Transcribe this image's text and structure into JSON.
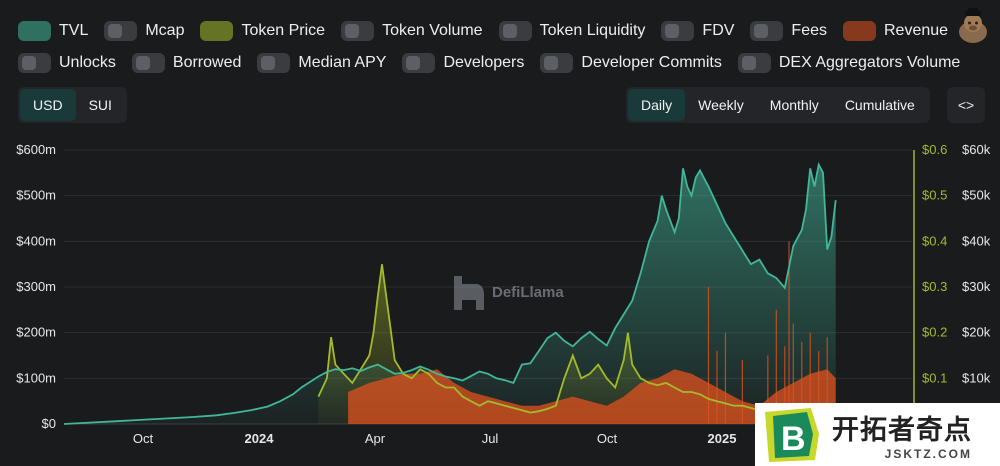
{
  "toggles": [
    {
      "label": "TVL",
      "on": true,
      "color": "#41b79a"
    },
    {
      "label": "Mcap",
      "on": false,
      "color": "#3a3c40"
    },
    {
      "label": "Token Price",
      "on": true,
      "color": "#a5ba2a"
    },
    {
      "label": "Token Volume",
      "on": false,
      "color": "#3a3c40"
    },
    {
      "label": "Token Liquidity",
      "on": false,
      "color": "#3a3c40"
    },
    {
      "label": "FDV",
      "on": false,
      "color": "#3a3c40"
    },
    {
      "label": "Fees",
      "on": false,
      "color": "#3a3c40"
    },
    {
      "label": "Revenue",
      "on": true,
      "color": "#e0521d"
    },
    {
      "label": "Unlocks",
      "on": false,
      "color": "#3a3c40"
    },
    {
      "label": "Borrowed",
      "on": false,
      "color": "#3a3c40"
    },
    {
      "label": "Median APY",
      "on": false,
      "color": "#3a3c40"
    },
    {
      "label": "Developers",
      "on": false,
      "color": "#3a3c40"
    },
    {
      "label": "Developer Commits",
      "on": false,
      "color": "#3a3c40"
    },
    {
      "label": "DEX Aggregators Volume",
      "on": false,
      "color": "#3a3c40"
    }
  ],
  "currency": {
    "options": [
      "USD",
      "SUI"
    ],
    "selected": "USD"
  },
  "period": {
    "options": [
      "Daily",
      "Weekly",
      "Monthly",
      "Cumulative"
    ],
    "selected": "Daily"
  },
  "embed_label": "<>",
  "watermark": "DefiLlama",
  "badge": {
    "title": "开拓者奇点",
    "sub": "JSKTZ.COM"
  },
  "chart_data": {
    "type": "area",
    "x_ticks": [
      "Oct",
      "2024",
      "Apr",
      "Jul",
      "Oct",
      "2025"
    ],
    "x_ticks_bold": [
      false,
      true,
      false,
      false,
      false,
      true
    ],
    "x_tick_pos": [
      0.143,
      0.259,
      0.375,
      0.49,
      0.607,
      0.722
    ],
    "axes": {
      "tvl": {
        "labels": [
          "$0",
          "$100m",
          "$200m",
          "$300m",
          "$400m",
          "$500m",
          "$600m"
        ],
        "ylim": [
          0,
          600
        ],
        "unit": "m"
      },
      "price": {
        "labels": [
          "$0.1",
          "$0.2",
          "$0.3",
          "$0.4",
          "$0.5",
          "$0.6"
        ],
        "ylim": [
          0,
          0.6
        ]
      },
      "revenue": {
        "labels": [
          "$10k",
          "$20k",
          "$30k",
          "$40k",
          "$50k",
          "$60k"
        ],
        "ylim": [
          0,
          60
        ]
      }
    },
    "series": [
      {
        "name": "TVL",
        "color": "#41b79a",
        "points": [
          [
            0,
            0
          ],
          [
            0.03,
            3
          ],
          [
            0.06,
            6
          ],
          [
            0.09,
            9
          ],
          [
            0.12,
            12
          ],
          [
            0.15,
            15
          ],
          [
            0.18,
            19
          ],
          [
            0.2,
            24
          ],
          [
            0.22,
            30
          ],
          [
            0.24,
            38
          ],
          [
            0.255,
            50
          ],
          [
            0.27,
            65
          ],
          [
            0.28,
            80
          ],
          [
            0.29,
            92
          ],
          [
            0.3,
            104
          ],
          [
            0.31,
            114
          ],
          [
            0.32,
            120
          ],
          [
            0.33,
            118
          ],
          [
            0.34,
            122
          ],
          [
            0.35,
            116
          ],
          [
            0.36,
            124
          ],
          [
            0.37,
            130
          ],
          [
            0.38,
            120
          ],
          [
            0.39,
            110
          ],
          [
            0.4,
            112
          ],
          [
            0.41,
            118
          ],
          [
            0.42,
            126
          ],
          [
            0.43,
            119
          ],
          [
            0.44,
            110
          ],
          [
            0.45,
            104
          ],
          [
            0.46,
            100
          ],
          [
            0.47,
            95
          ],
          [
            0.48,
            105
          ],
          [
            0.49,
            115
          ],
          [
            0.5,
            110
          ],
          [
            0.51,
            100
          ],
          [
            0.52,
            96
          ],
          [
            0.53,
            90
          ],
          [
            0.54,
            130
          ],
          [
            0.55,
            133
          ],
          [
            0.56,
            160
          ],
          [
            0.57,
            188
          ],
          [
            0.58,
            200
          ],
          [
            0.59,
            182
          ],
          [
            0.6,
            170
          ],
          [
            0.61,
            188
          ],
          [
            0.62,
            202
          ],
          [
            0.63,
            186
          ],
          [
            0.64,
            172
          ],
          [
            0.65,
            210
          ],
          [
            0.66,
            240
          ],
          [
            0.67,
            270
          ],
          [
            0.68,
            330
          ],
          [
            0.69,
            400
          ],
          [
            0.7,
            445
          ],
          [
            0.705,
            500
          ],
          [
            0.71,
            470
          ],
          [
            0.72,
            420
          ],
          [
            0.725,
            450
          ],
          [
            0.73,
            560
          ],
          [
            0.735,
            520
          ],
          [
            0.74,
            500
          ],
          [
            0.745,
            540
          ],
          [
            0.75,
            555
          ],
          [
            0.76,
            520
          ],
          [
            0.77,
            480
          ],
          [
            0.78,
            440
          ],
          [
            0.79,
            410
          ],
          [
            0.8,
            380
          ],
          [
            0.81,
            350
          ],
          [
            0.82,
            360
          ],
          [
            0.83,
            330
          ],
          [
            0.84,
            320
          ],
          [
            0.85,
            298
          ],
          [
            0.86,
            390
          ],
          [
            0.87,
            425
          ],
          [
            0.875,
            470
          ],
          [
            0.88,
            560
          ],
          [
            0.885,
            520
          ],
          [
            0.89,
            568
          ],
          [
            0.895,
            550
          ],
          [
            0.9,
            382
          ],
          [
            0.905,
            410
          ],
          [
            0.91,
            490
          ]
        ]
      },
      {
        "name": "Token Price",
        "color": "#a5ba2a",
        "points": [
          [
            0.3,
            0.06
          ],
          [
            0.31,
            0.1
          ],
          [
            0.315,
            0.19
          ],
          [
            0.32,
            0.13
          ],
          [
            0.33,
            0.11
          ],
          [
            0.34,
            0.09
          ],
          [
            0.35,
            0.12
          ],
          [
            0.36,
            0.15
          ],
          [
            0.365,
            0.2
          ],
          [
            0.37,
            0.28
          ],
          [
            0.375,
            0.35
          ],
          [
            0.38,
            0.28
          ],
          [
            0.385,
            0.21
          ],
          [
            0.39,
            0.14
          ],
          [
            0.4,
            0.11
          ],
          [
            0.41,
            0.1
          ],
          [
            0.42,
            0.12
          ],
          [
            0.43,
            0.11
          ],
          [
            0.44,
            0.09
          ],
          [
            0.45,
            0.08
          ],
          [
            0.46,
            0.08
          ],
          [
            0.47,
            0.06
          ],
          [
            0.48,
            0.05
          ],
          [
            0.49,
            0.04
          ],
          [
            0.5,
            0.05
          ],
          [
            0.51,
            0.045
          ],
          [
            0.52,
            0.04
          ],
          [
            0.53,
            0.035
          ],
          [
            0.54,
            0.03
          ],
          [
            0.55,
            0.025
          ],
          [
            0.56,
            0.028
          ],
          [
            0.57,
            0.033
          ],
          [
            0.58,
            0.04
          ],
          [
            0.59,
            0.1
          ],
          [
            0.6,
            0.15
          ],
          [
            0.61,
            0.1
          ],
          [
            0.62,
            0.11
          ],
          [
            0.63,
            0.13
          ],
          [
            0.64,
            0.1
          ],
          [
            0.65,
            0.08
          ],
          [
            0.66,
            0.14
          ],
          [
            0.665,
            0.2
          ],
          [
            0.67,
            0.13
          ],
          [
            0.68,
            0.1
          ],
          [
            0.69,
            0.09
          ],
          [
            0.7,
            0.085
          ],
          [
            0.71,
            0.09
          ],
          [
            0.72,
            0.08
          ],
          [
            0.73,
            0.07
          ],
          [
            0.74,
            0.07
          ],
          [
            0.75,
            0.065
          ],
          [
            0.76,
            0.055
          ],
          [
            0.77,
            0.05
          ],
          [
            0.78,
            0.045
          ],
          [
            0.79,
            0.04
          ],
          [
            0.8,
            0.04
          ],
          [
            0.81,
            0.035
          ],
          [
            0.82,
            0.03
          ],
          [
            0.83,
            0.04
          ],
          [
            0.84,
            0.045
          ],
          [
            0.85,
            0.04
          ],
          [
            0.86,
            0.035
          ],
          [
            0.87,
            0.04
          ],
          [
            0.88,
            0.035
          ],
          [
            0.89,
            0.03
          ],
          [
            0.9,
            0.025
          ],
          [
            0.91,
            0.025
          ]
        ]
      },
      {
        "name": "Revenue",
        "color": "#e0521d",
        "points": [
          [
            0.335,
            7
          ],
          [
            0.36,
            9
          ],
          [
            0.38,
            10
          ],
          [
            0.4,
            11
          ],
          [
            0.42,
            11
          ],
          [
            0.44,
            12
          ],
          [
            0.46,
            9
          ],
          [
            0.48,
            7
          ],
          [
            0.5,
            6
          ],
          [
            0.52,
            5
          ],
          [
            0.54,
            4
          ],
          [
            0.56,
            4
          ],
          [
            0.58,
            5
          ],
          [
            0.6,
            6
          ],
          [
            0.62,
            5
          ],
          [
            0.64,
            4
          ],
          [
            0.66,
            6
          ],
          [
            0.68,
            9
          ],
          [
            0.7,
            10
          ],
          [
            0.72,
            12
          ],
          [
            0.74,
            11
          ],
          [
            0.76,
            9
          ],
          [
            0.78,
            7
          ],
          [
            0.8,
            5
          ],
          [
            0.82,
            4
          ],
          [
            0.84,
            7
          ],
          [
            0.86,
            9
          ],
          [
            0.88,
            11
          ],
          [
            0.9,
            12
          ],
          [
            0.91,
            10
          ]
        ]
      }
    ]
  }
}
